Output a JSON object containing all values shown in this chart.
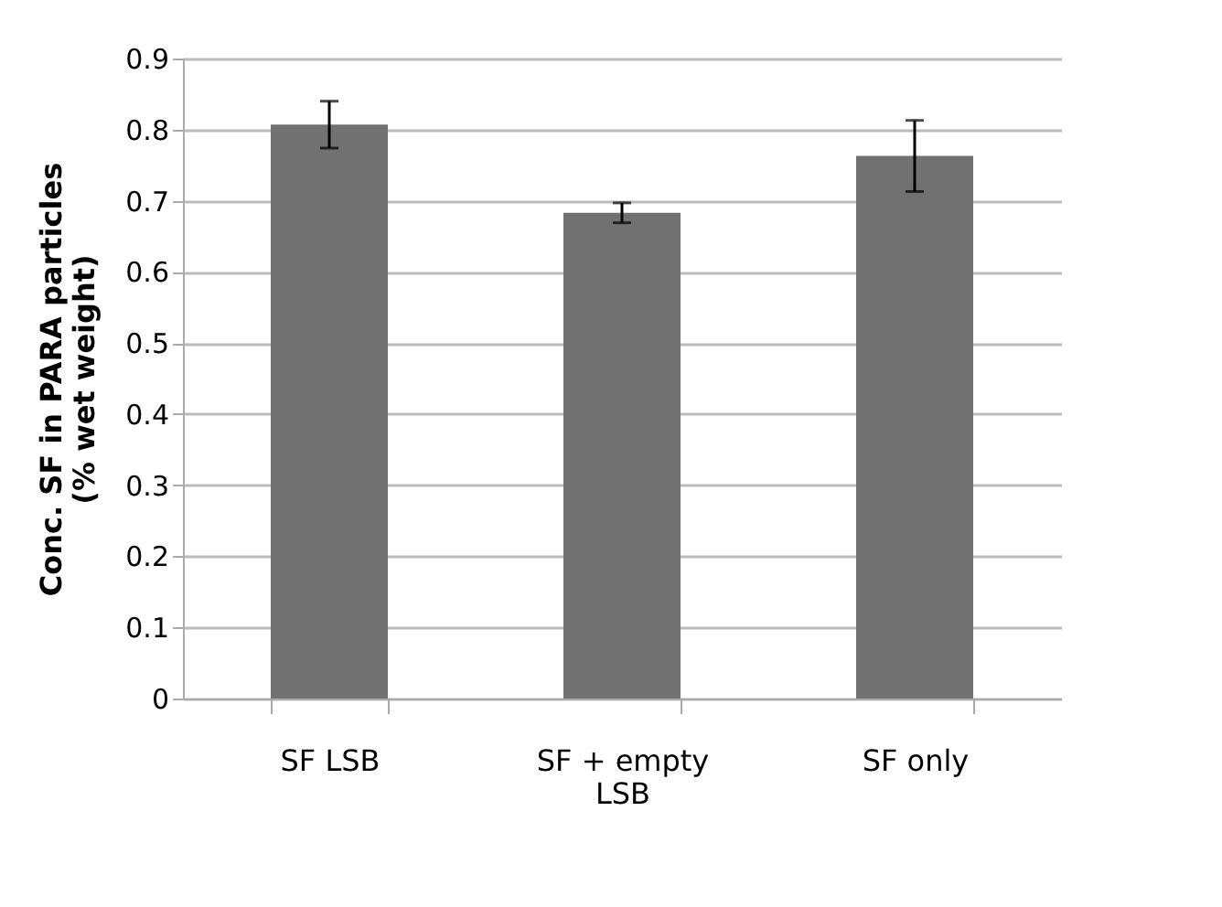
{
  "chart_data": {
    "type": "bar",
    "ylabel": "Conc. SF in PARA particles\n(% wet weight)",
    "categories": [
      "SF LSB",
      "SF + empty LSB",
      "SF only"
    ],
    "values": [
      0.807,
      0.683,
      0.763
    ],
    "errors": [
      0.033,
      0.014,
      0.05
    ],
    "color": "#717171",
    "ylim": [
      0,
      0.9
    ],
    "yticks": [
      0,
      0.1,
      0.2,
      0.3,
      0.4,
      0.5,
      0.6,
      0.7,
      0.8,
      0.9
    ],
    "grid": "y"
  }
}
